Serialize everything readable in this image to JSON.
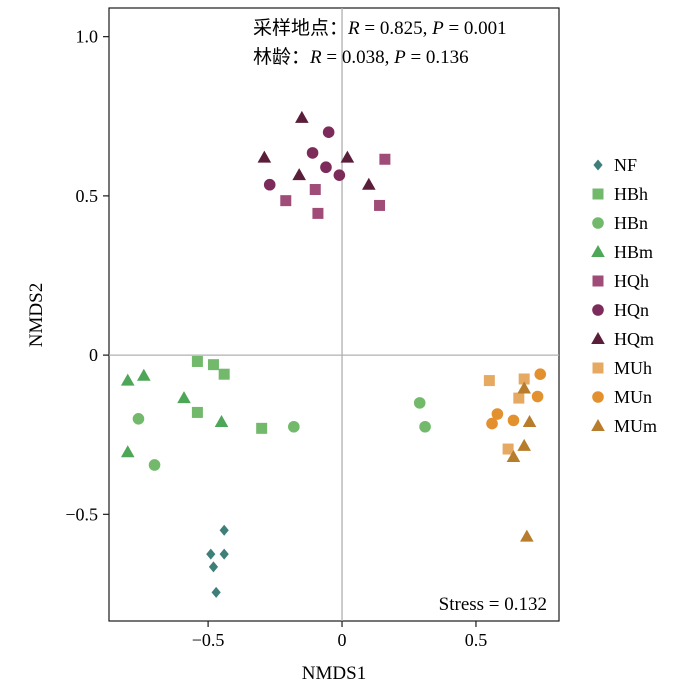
{
  "chart_data": {
    "type": "scatter",
    "xlabel": "NMDS1",
    "ylabel": "NMDS2",
    "xlim": [
      -0.87,
      0.81
    ],
    "ylim": [
      -0.835,
      1.09
    ],
    "x_ticks": [
      -0.5,
      0,
      0.5
    ],
    "x_tick_labels": [
      "−0.5",
      "0",
      "0.5"
    ],
    "y_ticks": [
      -0.5,
      0,
      0.5,
      1.0
    ],
    "y_tick_labels": [
      "−0.5",
      "0",
      "0.5",
      "1.0"
    ],
    "reference_lines": {
      "x": 0,
      "y": 0,
      "color": "#b0b0b0"
    },
    "grid": false,
    "legend_position": "right",
    "annotations": {
      "line1": {
        "label": "采样地点：",
        "r_label": "R",
        "r_value": " = 0.825, ",
        "p_label": "P",
        "p_value": " = 0.001"
      },
      "line2": {
        "label": "林龄：",
        "r_label": "R",
        "r_value": " = 0.038, ",
        "p_label": "P",
        "p_value": " = 0.136"
      },
      "stress": "Stress = 0.132"
    },
    "series": [
      {
        "name": "NF",
        "marker": "diamond",
        "color": "#3f7f7a",
        "points": [
          [
            -0.44,
            -0.55
          ],
          [
            -0.49,
            -0.625
          ],
          [
            -0.44,
            -0.625
          ],
          [
            -0.48,
            -0.665
          ],
          [
            -0.47,
            -0.745
          ]
        ]
      },
      {
        "name": "HBh",
        "marker": "square",
        "color": "#72b96b",
        "points": [
          [
            -0.54,
            -0.02
          ],
          [
            -0.48,
            -0.03
          ],
          [
            -0.44,
            -0.06
          ],
          [
            -0.54,
            -0.18
          ],
          [
            -0.3,
            -0.23
          ]
        ]
      },
      {
        "name": "HBn",
        "marker": "circle",
        "color": "#72b96b",
        "points": [
          [
            -0.76,
            -0.2
          ],
          [
            -0.7,
            -0.345
          ],
          [
            -0.18,
            -0.225
          ],
          [
            0.29,
            -0.15
          ],
          [
            0.31,
            -0.225
          ]
        ]
      },
      {
        "name": "HBm",
        "marker": "triangle",
        "color": "#4ea658",
        "points": [
          [
            -0.8,
            -0.08
          ],
          [
            -0.74,
            -0.065
          ],
          [
            -0.59,
            -0.135
          ],
          [
            -0.45,
            -0.21
          ],
          [
            -0.8,
            -0.305
          ]
        ]
      },
      {
        "name": "HQh",
        "marker": "square",
        "color": "#a04c79",
        "points": [
          [
            0.16,
            0.615
          ],
          [
            -0.1,
            0.52
          ],
          [
            -0.21,
            0.485
          ],
          [
            -0.09,
            0.445
          ],
          [
            0.14,
            0.47
          ]
        ]
      },
      {
        "name": "HQn",
        "marker": "circle",
        "color": "#7d2b5a",
        "points": [
          [
            -0.05,
            0.7
          ],
          [
            -0.11,
            0.635
          ],
          [
            -0.06,
            0.59
          ],
          [
            -0.01,
            0.565
          ],
          [
            -0.27,
            0.535
          ]
        ]
      },
      {
        "name": "HQm",
        "marker": "triangle",
        "color": "#5a1e3a",
        "points": [
          [
            -0.15,
            0.745
          ],
          [
            -0.29,
            0.62
          ],
          [
            0.02,
            0.62
          ],
          [
            -0.16,
            0.565
          ],
          [
            0.1,
            0.535
          ]
        ]
      },
      {
        "name": "MUh",
        "marker": "square",
        "color": "#e6a962",
        "points": [
          [
            0.55,
            -0.08
          ],
          [
            0.68,
            -0.075
          ],
          [
            0.66,
            -0.135
          ],
          [
            0.62,
            -0.295
          ]
        ]
      },
      {
        "name": "MUn",
        "marker": "circle",
        "color": "#e3902f",
        "points": [
          [
            0.74,
            -0.06
          ],
          [
            0.73,
            -0.13
          ],
          [
            0.58,
            -0.185
          ],
          [
            0.64,
            -0.205
          ],
          [
            0.56,
            -0.215
          ]
        ]
      },
      {
        "name": "MUm",
        "marker": "triangle",
        "color": "#b87d2c",
        "points": [
          [
            0.68,
            -0.105
          ],
          [
            0.7,
            -0.21
          ],
          [
            0.68,
            -0.285
          ],
          [
            0.64,
            -0.32
          ],
          [
            0.69,
            -0.57
          ]
        ]
      }
    ]
  }
}
